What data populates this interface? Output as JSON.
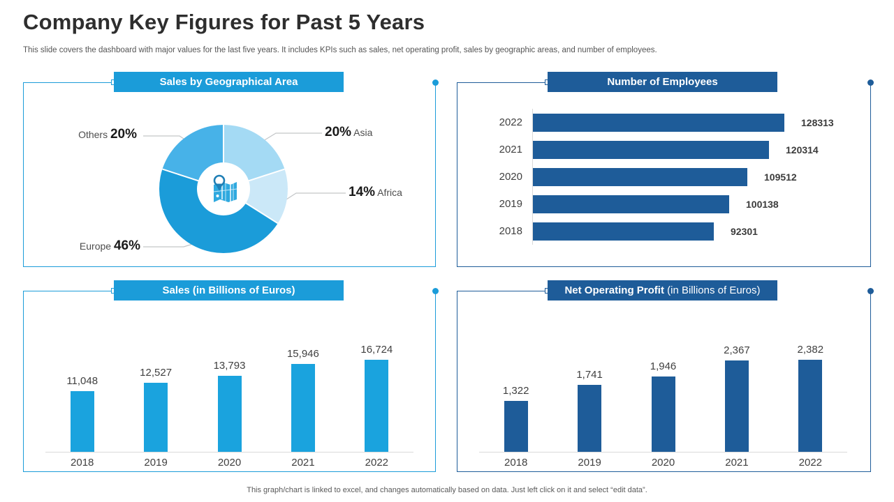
{
  "slide": {
    "title": "Company Key Figures for Past 5 Years",
    "subtitle": "This slide covers the dashboard with major values for the last five years. It includes KPIs such as sales, net operating profit, sales by geographic areas, and number of employees.",
    "footer": "This graph/chart is linked to excel, and changes automatically based on data. Just left click on it and select “edit data”."
  },
  "colors": {
    "accent_cyan": "#1B9CD9",
    "accent_dark_blue": "#1E5C99",
    "bar_cyan": "#1AA3DE",
    "axis_gray": "#D9D9D9",
    "text_dark": "#404040"
  },
  "chart_data": [
    {
      "id": "sales_by_geography",
      "type": "pie",
      "title": "Sales by Geographical Area",
      "donut": true,
      "center_icon": "map-location",
      "start_angle_deg": 0,
      "slices": [
        {
          "label": "Asia",
          "value": 20,
          "pct": "20%",
          "color": "#A4DAF4"
        },
        {
          "label": "Africa",
          "value": 14,
          "pct": "14%",
          "color": "#CBE8F8"
        },
        {
          "label": "Europe",
          "value": 46,
          "pct": "46%",
          "color": "#1B9CD9"
        },
        {
          "label": "Others",
          "value": 20,
          "pct": "20%",
          "color": "#47B2E8"
        }
      ]
    },
    {
      "id": "number_of_employees",
      "type": "bar",
      "orientation": "horizontal",
      "title": "Number of Employees",
      "categories": [
        "2022",
        "2021",
        "2020",
        "2019",
        "2018"
      ],
      "values": [
        128313,
        120314,
        109512,
        100138,
        92301
      ],
      "value_labels": [
        "128313",
        "120314",
        "109512",
        "100138",
        "92301"
      ],
      "bar_color": "#1E5C99",
      "xlim": [
        0,
        128313
      ],
      "grid": false,
      "legend": "none"
    },
    {
      "id": "sales",
      "type": "bar",
      "orientation": "vertical",
      "title": "Sales (in Billions of Euros)",
      "categories": [
        "2018",
        "2019",
        "2020",
        "2021",
        "2022"
      ],
      "values": [
        11048,
        12527,
        13793,
        15946,
        16724
      ],
      "value_labels": [
        "11,048",
        "12,527",
        "13,793",
        "15,946",
        "16,724"
      ],
      "bar_color": "#1AA3DE",
      "ylim": [
        0,
        16724
      ],
      "grid": false,
      "legend": "none"
    },
    {
      "id": "net_operating_profit",
      "type": "bar",
      "orientation": "vertical",
      "title": "Net Operating Profit (in Billions of Euros)",
      "title_bold": "Net Operating Profit",
      "title_rest": " (in Billions of Euros)",
      "categories": [
        "2018",
        "2019",
        "2020",
        "2021",
        "2022"
      ],
      "values": [
        1322,
        1741,
        1946,
        2367,
        2382
      ],
      "value_labels": [
        "1,322",
        "1,741",
        "1,946",
        "2,367",
        "2,382"
      ],
      "bar_color": "#1E5C99",
      "ylim": [
        0,
        2382
      ],
      "grid": false,
      "legend": "none"
    }
  ]
}
